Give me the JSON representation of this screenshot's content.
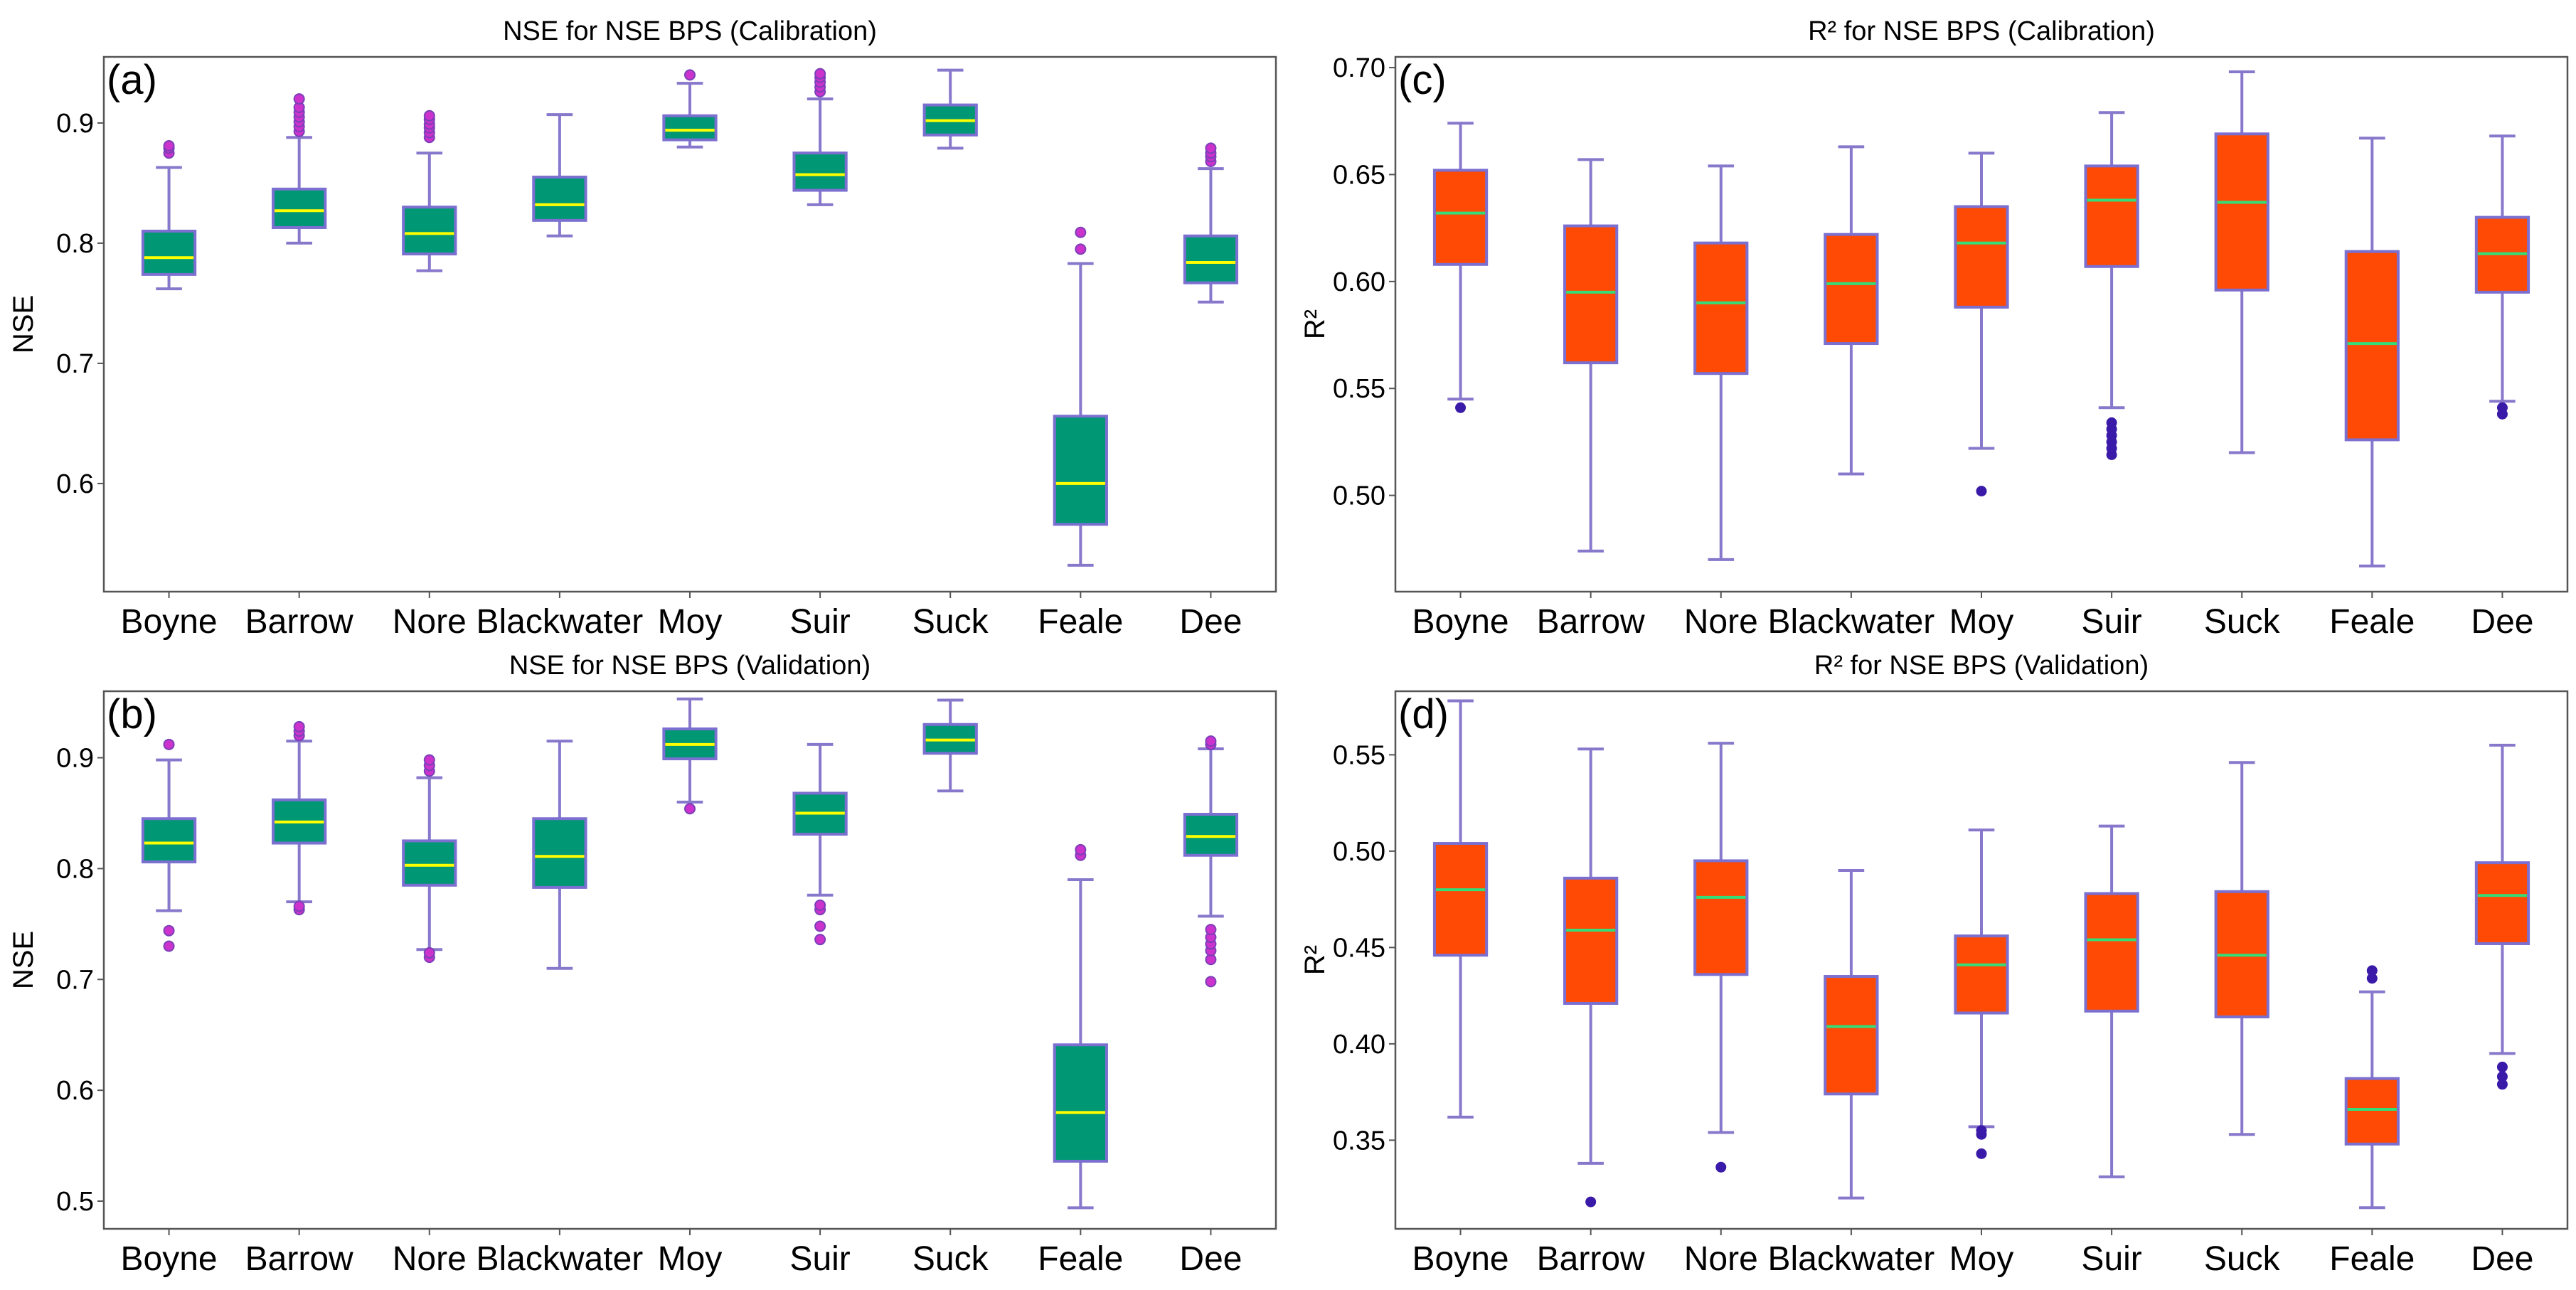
{
  "colors": {
    "nse_box_fill": "#009775",
    "r2_box_fill": "#ff4a05",
    "box_edge": "#7b6fd0",
    "whisker": "#8878cc",
    "nse_median": "#ffff00",
    "r2_median": "#33dd77",
    "nse_flier": "#cc33cc",
    "r2_flier": "#3a1aa8",
    "frame": "#555555"
  },
  "chart_data": [
    {
      "id": "a",
      "letter": "(a)",
      "type": "box",
      "title": "NSE for NSE BPS (Calibration)",
      "xlabel": "",
      "ylabel": "NSE",
      "ylim": [
        0.51,
        0.955
      ],
      "yticks": [
        0.6,
        0.7,
        0.8,
        0.9
      ],
      "ytick_labels": [
        "0.6",
        "0.7",
        "0.8",
        "0.9"
      ],
      "style": "nse",
      "categories": [
        "Boyne",
        "Barrow",
        "Nore",
        "Blackwater",
        "Moy",
        "Suir",
        "Suck",
        "Feale",
        "Dee"
      ],
      "boxes": [
        {
          "whislo": 0.762,
          "q1": 0.774,
          "med": 0.788,
          "q3": 0.81,
          "whishi": 0.863,
          "fliers": [
            0.875,
            0.879,
            0.881
          ]
        },
        {
          "whislo": 0.8,
          "q1": 0.813,
          "med": 0.827,
          "q3": 0.845,
          "whishi": 0.888,
          "fliers": [
            0.893,
            0.897,
            0.901,
            0.905,
            0.909,
            0.913,
            0.92
          ]
        },
        {
          "whislo": 0.777,
          "q1": 0.791,
          "med": 0.808,
          "q3": 0.83,
          "whishi": 0.875,
          "fliers": [
            0.888,
            0.892,
            0.896,
            0.899,
            0.903,
            0.906
          ]
        },
        {
          "whislo": 0.806,
          "q1": 0.819,
          "med": 0.832,
          "q3": 0.855,
          "whishi": 0.907,
          "fliers": []
        },
        {
          "whislo": 0.88,
          "q1": 0.886,
          "med": 0.894,
          "q3": 0.906,
          "whishi": 0.933,
          "fliers": [
            0.94
          ]
        },
        {
          "whislo": 0.832,
          "q1": 0.844,
          "med": 0.857,
          "q3": 0.875,
          "whishi": 0.92,
          "fliers": [
            0.926,
            0.93,
            0.934,
            0.938,
            0.941
          ]
        },
        {
          "whislo": 0.879,
          "q1": 0.89,
          "med": 0.902,
          "q3": 0.915,
          "whishi": 0.944,
          "fliers": []
        },
        {
          "whislo": 0.532,
          "q1": 0.566,
          "med": 0.6,
          "q3": 0.656,
          "whishi": 0.783,
          "fliers": [
            0.795,
            0.809
          ]
        },
        {
          "whislo": 0.751,
          "q1": 0.767,
          "med": 0.784,
          "q3": 0.806,
          "whishi": 0.862,
          "fliers": [
            0.868,
            0.872,
            0.875,
            0.879
          ]
        }
      ]
    },
    {
      "id": "c",
      "letter": "(c)",
      "type": "box",
      "title": "R² for NSE BPS (Calibration)",
      "xlabel": "",
      "ylabel": "R²",
      "ylim": [
        0.455,
        0.705
      ],
      "yticks": [
        0.5,
        0.55,
        0.6,
        0.65,
        0.7
      ],
      "ytick_labels": [
        "0.50",
        "0.55",
        "0.60",
        "0.65",
        "0.70"
      ],
      "style": "r2",
      "categories": [
        "Boyne",
        "Barrow",
        "Nore",
        "Blackwater",
        "Moy",
        "Suir",
        "Suck",
        "Feale",
        "Dee"
      ],
      "boxes": [
        {
          "whislo": 0.545,
          "q1": 0.608,
          "med": 0.632,
          "q3": 0.652,
          "whishi": 0.674,
          "fliers": [
            0.541
          ]
        },
        {
          "whislo": 0.474,
          "q1": 0.562,
          "med": 0.595,
          "q3": 0.626,
          "whishi": 0.657,
          "fliers": []
        },
        {
          "whislo": 0.47,
          "q1": 0.557,
          "med": 0.59,
          "q3": 0.618,
          "whishi": 0.654,
          "fliers": []
        },
        {
          "whislo": 0.51,
          "q1": 0.571,
          "med": 0.599,
          "q3": 0.622,
          "whishi": 0.663,
          "fliers": []
        },
        {
          "whislo": 0.522,
          "q1": 0.588,
          "med": 0.618,
          "q3": 0.635,
          "whishi": 0.66,
          "fliers": [
            0.502
          ]
        },
        {
          "whislo": 0.541,
          "q1": 0.607,
          "med": 0.638,
          "q3": 0.654,
          "whishi": 0.679,
          "fliers": [
            0.534,
            0.531,
            0.528,
            0.525,
            0.522,
            0.519
          ]
        },
        {
          "whislo": 0.52,
          "q1": 0.596,
          "med": 0.637,
          "q3": 0.669,
          "whishi": 0.698,
          "fliers": []
        },
        {
          "whislo": 0.467,
          "q1": 0.526,
          "med": 0.571,
          "q3": 0.614,
          "whishi": 0.667,
          "fliers": []
        },
        {
          "whislo": 0.544,
          "q1": 0.595,
          "med": 0.613,
          "q3": 0.63,
          "whishi": 0.668,
          "fliers": [
            0.541,
            0.538
          ]
        }
      ]
    },
    {
      "id": "b",
      "letter": "(b)",
      "type": "box",
      "title": "NSE for NSE BPS (Validation)",
      "xlabel": "",
      "ylabel": "NSE",
      "ylim": [
        0.475,
        0.96
      ],
      "yticks": [
        0.5,
        0.6,
        0.7,
        0.8,
        0.9
      ],
      "ytick_labels": [
        "0.5",
        "0.6",
        "0.7",
        "0.8",
        "0.9"
      ],
      "style": "nse",
      "categories": [
        "Boyne",
        "Barrow",
        "Nore",
        "Blackwater",
        "Moy",
        "Suir",
        "Suck",
        "Feale",
        "Dee"
      ],
      "boxes": [
        {
          "whislo": 0.762,
          "q1": 0.806,
          "med": 0.823,
          "q3": 0.845,
          "whishi": 0.898,
          "fliers": [
            0.73,
            0.744,
            0.912
          ]
        },
        {
          "whislo": 0.77,
          "q1": 0.823,
          "med": 0.842,
          "q3": 0.862,
          "whishi": 0.915,
          "fliers": [
            0.763,
            0.766,
            0.92,
            0.924,
            0.928
          ]
        },
        {
          "whislo": 0.727,
          "q1": 0.785,
          "med": 0.803,
          "q3": 0.825,
          "whishi": 0.882,
          "fliers": [
            0.72,
            0.724,
            0.888,
            0.893,
            0.898
          ]
        },
        {
          "whislo": 0.71,
          "q1": 0.783,
          "med": 0.811,
          "q3": 0.845,
          "whishi": 0.915,
          "fliers": []
        },
        {
          "whislo": 0.86,
          "q1": 0.899,
          "med": 0.912,
          "q3": 0.926,
          "whishi": 0.953,
          "fliers": [
            0.854
          ]
        },
        {
          "whislo": 0.776,
          "q1": 0.831,
          "med": 0.85,
          "q3": 0.868,
          "whishi": 0.912,
          "fliers": [
            0.736,
            0.748,
            0.763,
            0.767
          ]
        },
        {
          "whislo": 0.87,
          "q1": 0.904,
          "med": 0.916,
          "q3": 0.93,
          "whishi": 0.952,
          "fliers": []
        },
        {
          "whislo": 0.494,
          "q1": 0.536,
          "med": 0.58,
          "q3": 0.641,
          "whishi": 0.79,
          "fliers": [
            0.812,
            0.817
          ]
        },
        {
          "whislo": 0.757,
          "q1": 0.812,
          "med": 0.829,
          "q3": 0.849,
          "whishi": 0.908,
          "fliers": [
            0.698,
            0.718,
            0.726,
            0.732,
            0.738,
            0.745,
            0.912,
            0.915
          ]
        }
      ]
    },
    {
      "id": "d",
      "letter": "(d)",
      "type": "box",
      "title": "R² for NSE BPS (Validation)",
      "xlabel": "",
      "ylabel": "R²",
      "ylim": [
        0.304,
        0.583
      ],
      "yticks": [
        0.35,
        0.4,
        0.45,
        0.5,
        0.55
      ],
      "ytick_labels": [
        "0.35",
        "0.40",
        "0.45",
        "0.50",
        "0.55"
      ],
      "style": "r2",
      "categories": [
        "Boyne",
        "Barrow",
        "Nore",
        "Blackwater",
        "Moy",
        "Suir",
        "Suck",
        "Feale",
        "Dee"
      ],
      "boxes": [
        {
          "whislo": 0.362,
          "q1": 0.446,
          "med": 0.48,
          "q3": 0.504,
          "whishi": 0.578,
          "fliers": []
        },
        {
          "whislo": 0.338,
          "q1": 0.421,
          "med": 0.459,
          "q3": 0.486,
          "whishi": 0.553,
          "fliers": [
            0.318
          ]
        },
        {
          "whislo": 0.354,
          "q1": 0.436,
          "med": 0.476,
          "q3": 0.495,
          "whishi": 0.556,
          "fliers": [
            0.336
          ]
        },
        {
          "whislo": 0.32,
          "q1": 0.374,
          "med": 0.409,
          "q3": 0.435,
          "whishi": 0.49,
          "fliers": []
        },
        {
          "whislo": 0.357,
          "q1": 0.416,
          "med": 0.441,
          "q3": 0.456,
          "whishi": 0.511,
          "fliers": [
            0.343,
            0.353,
            0.355
          ]
        },
        {
          "whislo": 0.331,
          "q1": 0.417,
          "med": 0.454,
          "q3": 0.478,
          "whishi": 0.513,
          "fliers": []
        },
        {
          "whislo": 0.353,
          "q1": 0.414,
          "med": 0.446,
          "q3": 0.479,
          "whishi": 0.546,
          "fliers": []
        },
        {
          "whislo": 0.315,
          "q1": 0.348,
          "med": 0.366,
          "q3": 0.382,
          "whishi": 0.427,
          "fliers": [
            0.434,
            0.438
          ]
        },
        {
          "whislo": 0.395,
          "q1": 0.452,
          "med": 0.477,
          "q3": 0.494,
          "whishi": 0.555,
          "fliers": [
            0.379,
            0.383,
            0.388
          ]
        }
      ]
    }
  ]
}
